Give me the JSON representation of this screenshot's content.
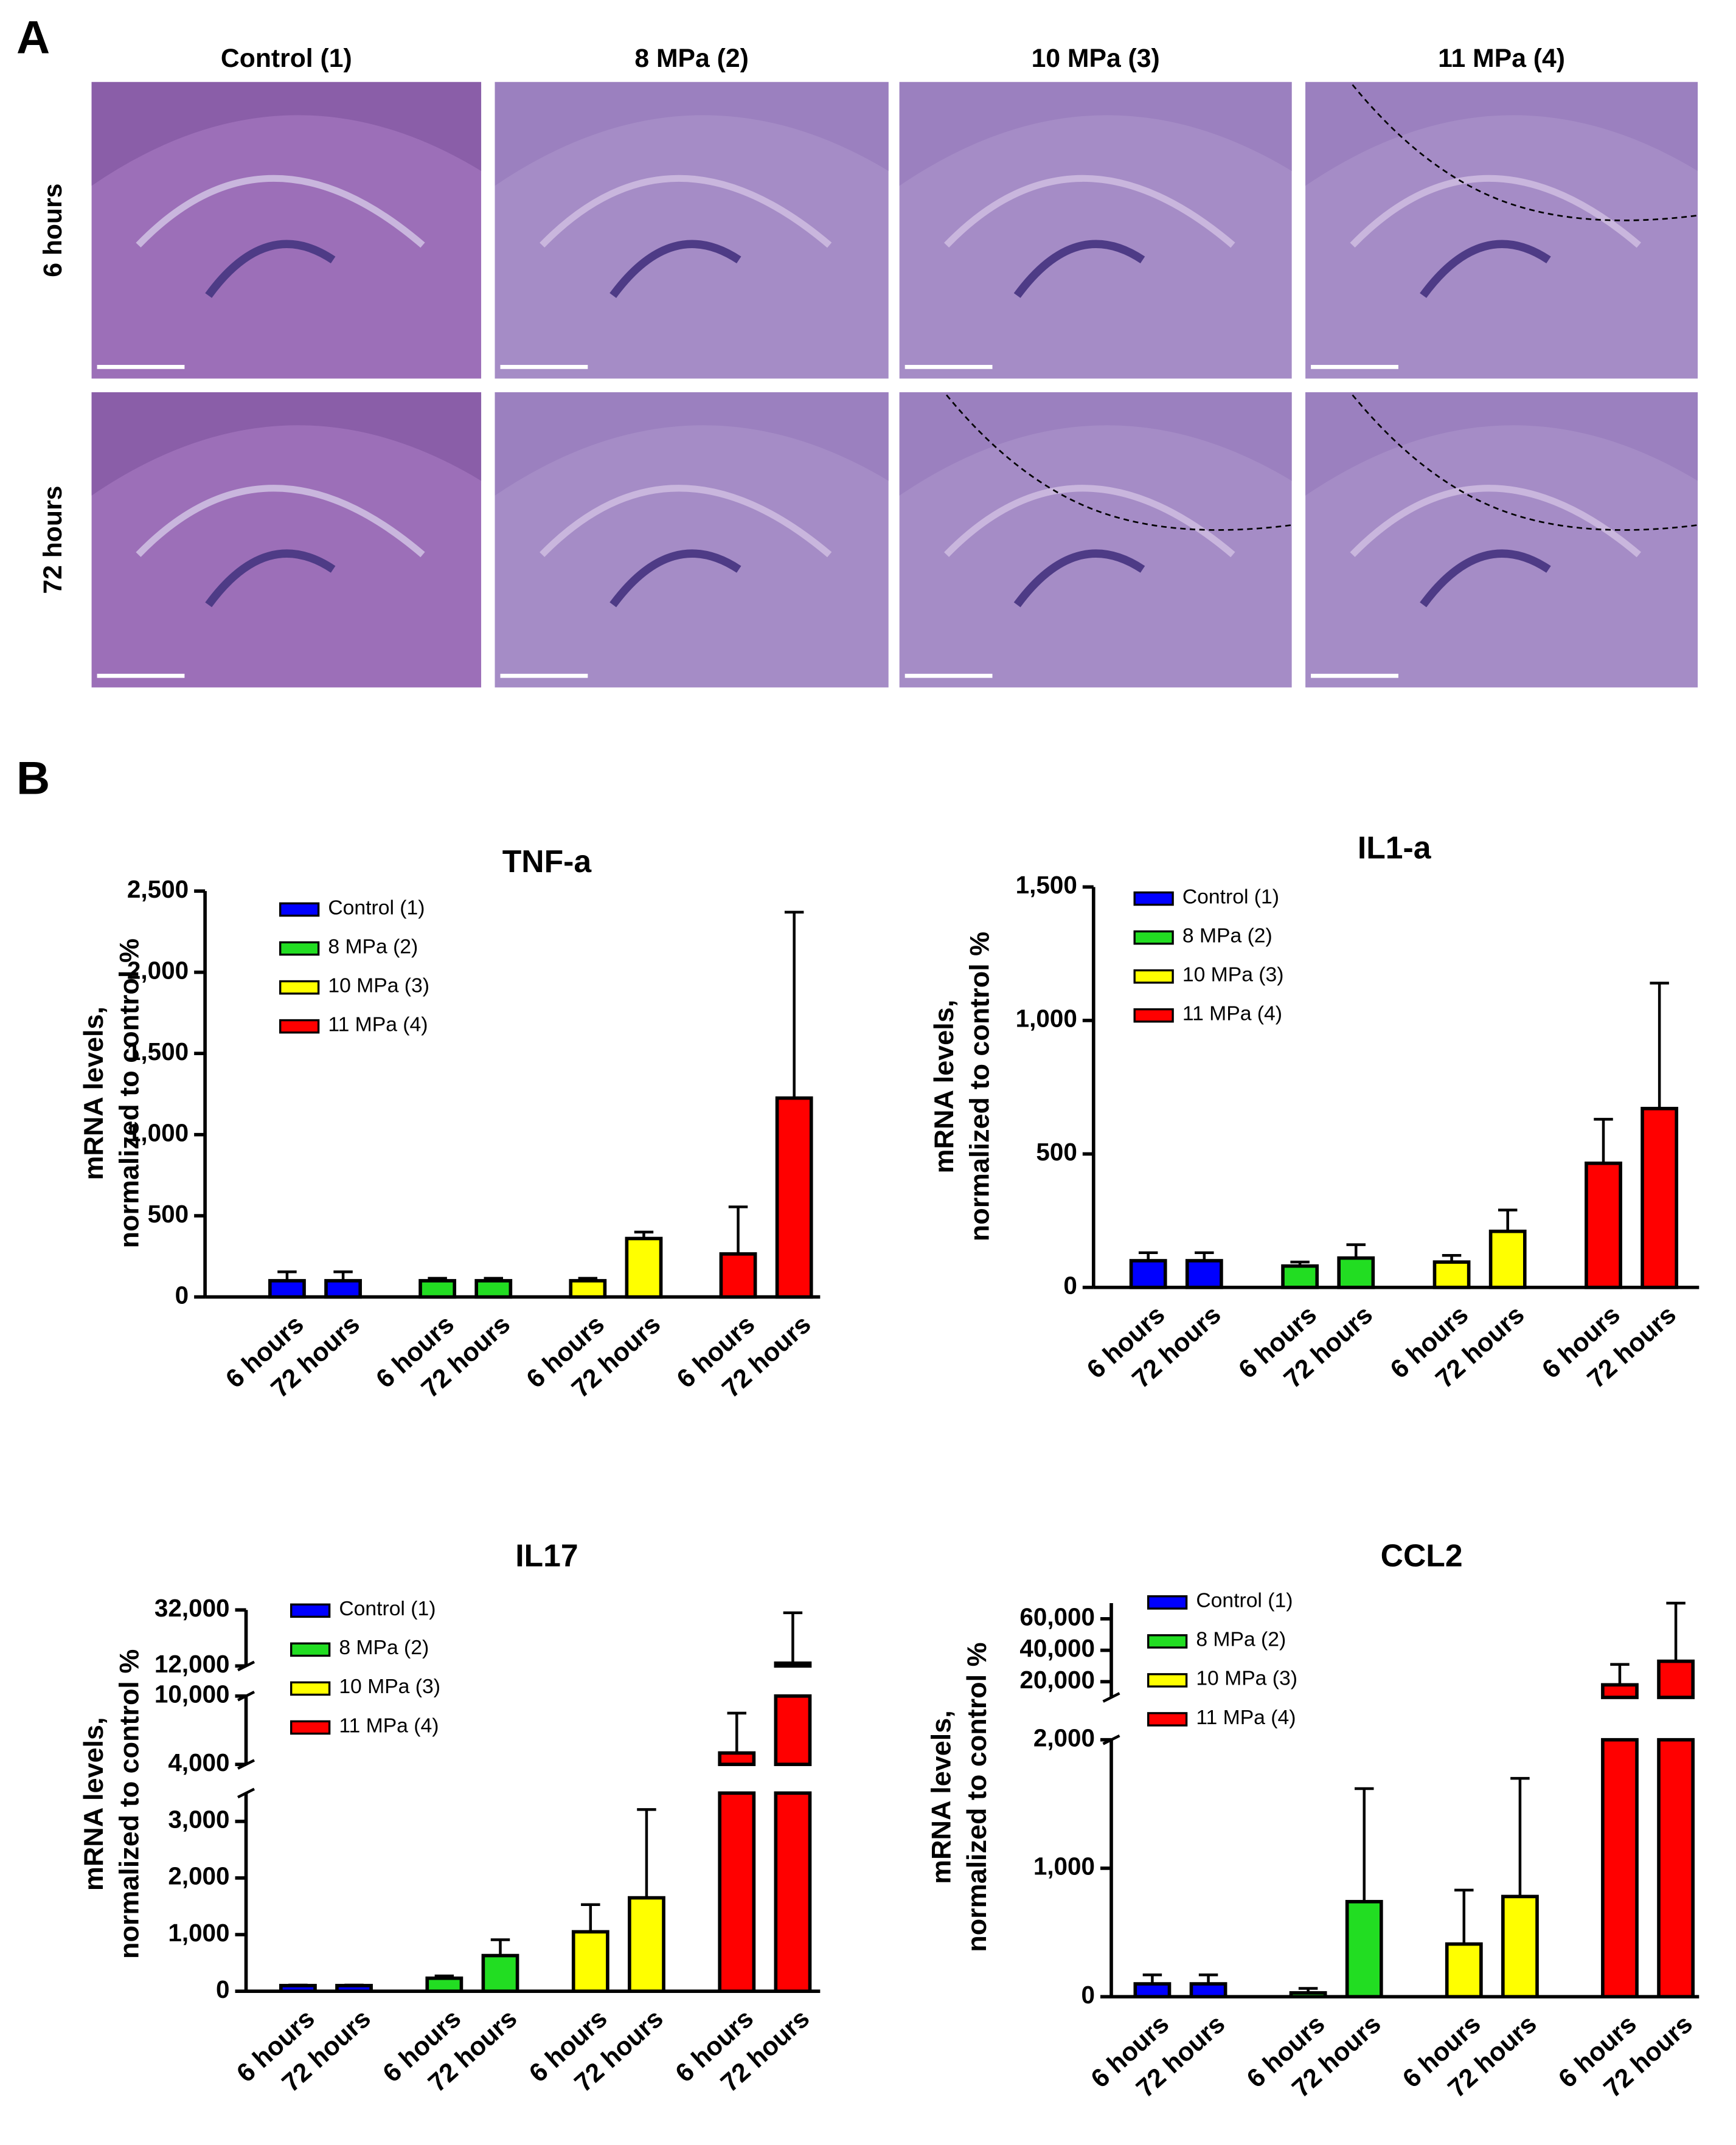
{
  "panel_a": {
    "label": "A",
    "columns": [
      "Control (1)",
      "8 MPa (2)",
      "10 MPa (3)",
      "11 MPa (4)"
    ],
    "rows": [
      "6 hours",
      "72 hours"
    ]
  },
  "panel_b_label": "B",
  "chart_data": [
    {
      "type": "bar",
      "title": "TNF-a",
      "ylabel": [
        "mRNA levels,",
        "normalized to control %"
      ],
      "categories": [
        "6 hours",
        "72 hours"
      ],
      "ylim": [
        0,
        2500
      ],
      "yticks": [
        0,
        500,
        {
          "value": 1000,
          "label": "1,000"
        },
        {
          "value": 1500,
          "label": "1,500"
        },
        {
          "value": 2000,
          "label": "2,000"
        },
        {
          "value": 2500,
          "label": "2,500"
        }
      ],
      "series": [
        {
          "name": "Control (1)",
          "color": "#0000ff",
          "values": [
            100,
            100
          ],
          "errors": [
            55,
            55
          ]
        },
        {
          "name": "8 MPa (2)",
          "color": "#22dd22",
          "values": [
            100,
            100
          ],
          "errors": [
            15,
            15
          ]
        },
        {
          "name": "10 MPa (3)",
          "color": "#ffff00",
          "values": [
            100,
            360
          ],
          "errors": [
            15,
            40
          ]
        },
        {
          "name": "11 MPa (4)",
          "color": "#ff0000",
          "values": [
            265,
            1225
          ],
          "errors": [
            290,
            1145
          ]
        }
      ]
    },
    {
      "type": "bar",
      "title": "IL1-a",
      "ylabel": [
        "mRNA levels,",
        "normalized to control %"
      ],
      "categories": [
        "6 hours",
        "72 hours"
      ],
      "ylim": [
        0,
        1500
      ],
      "yticks": [
        0,
        500,
        {
          "value": 1000,
          "label": "1,000"
        },
        {
          "value": 1500,
          "label": "1,500"
        }
      ],
      "series": [
        {
          "name": "Control (1)",
          "color": "#0000ff",
          "values": [
            100,
            100
          ],
          "errors": [
            30,
            30
          ]
        },
        {
          "name": "8 MPa (2)",
          "color": "#22dd22",
          "values": [
            80,
            110
          ],
          "errors": [
            15,
            50
          ]
        },
        {
          "name": "10 MPa (3)",
          "color": "#ffff00",
          "values": [
            95,
            210
          ],
          "errors": [
            25,
            80
          ]
        },
        {
          "name": "11 MPa (4)",
          "color": "#ff0000",
          "values": [
            465,
            670
          ],
          "errors": [
            165,
            470
          ]
        }
      ]
    },
    {
      "type": "bar",
      "title": "IL17",
      "ylabel": [
        "mRNA levels,",
        "normalized to control %"
      ],
      "categories": [
        "6 hours",
        "72 hours"
      ],
      "y_segments": [
        {
          "ylim": [
            0,
            3500
          ],
          "yticks": [
            0,
            {
              "value": 1000,
              "label": "1,000"
            },
            {
              "value": 2000,
              "label": "2,000"
            },
            {
              "value": 3000,
              "label": "3,000"
            }
          ]
        },
        {
          "ylim": [
            4000,
            10000
          ],
          "yticks": [
            {
              "value": 4000,
              "label": "4,000"
            },
            {
              "value": 10000,
              "label": "10,000"
            }
          ]
        },
        {
          "ylim": [
            12000,
            32000
          ],
          "yticks": [
            {
              "value": 12000,
              "label": "12,000"
            },
            {
              "value": 32000,
              "label": "32,000"
            }
          ]
        }
      ],
      "series": [
        {
          "name": "Control (1)",
          "color": "#0000ff",
          "values": [
            100,
            100
          ],
          "errors": [
            10,
            10
          ]
        },
        {
          "name": "8 MPa (2)",
          "color": "#22dd22",
          "values": [
            230,
            630
          ],
          "errors": [
            40,
            280
          ]
        },
        {
          "name": "10 MPa (3)",
          "color": "#ffff00",
          "values": [
            1050,
            1650
          ],
          "errors": [
            480,
            1560
          ]
        },
        {
          "name": "11 MPa (4)",
          "color": "#ff0000",
          "values": [
            5000,
            13000
          ],
          "errors": [
            3500,
            18000
          ]
        }
      ]
    },
    {
      "type": "bar",
      "title": "CCL2",
      "ylabel": [
        "mRNA levels,",
        "normalized to control %"
      ],
      "categories": [
        "6 hours",
        "72 hours"
      ],
      "y_segments": [
        {
          "ylim": [
            0,
            2000
          ],
          "yticks": [
            0,
            {
              "value": 1000,
              "label": "1,000"
            },
            {
              "value": 2000,
              "label": "2,000"
            }
          ]
        },
        {
          "ylim": [
            10000,
            70000
          ],
          "yticks": [
            {
              "value": 20000,
              "label": "20,000"
            },
            {
              "value": 40000,
              "label": "40,000"
            },
            {
              "value": 60000,
              "label": "60,000"
            }
          ]
        }
      ],
      "series": [
        {
          "name": "Control (1)",
          "color": "#0000ff",
          "values": [
            100,
            100
          ],
          "errors": [
            70,
            70
          ]
        },
        {
          "name": "8 MPa (2)",
          "color": "#22dd22",
          "values": [
            30,
            740
          ],
          "errors": [
            35,
            880
          ]
        },
        {
          "name": "10 MPa (3)",
          "color": "#ffff00",
          "values": [
            410,
            780
          ],
          "errors": [
            420,
            920
          ]
        },
        {
          "name": "11 MPa (4)",
          "color": "#ff0000",
          "values": [
            18000,
            33000
          ],
          "errors": [
            13000,
            37000
          ]
        }
      ]
    }
  ]
}
